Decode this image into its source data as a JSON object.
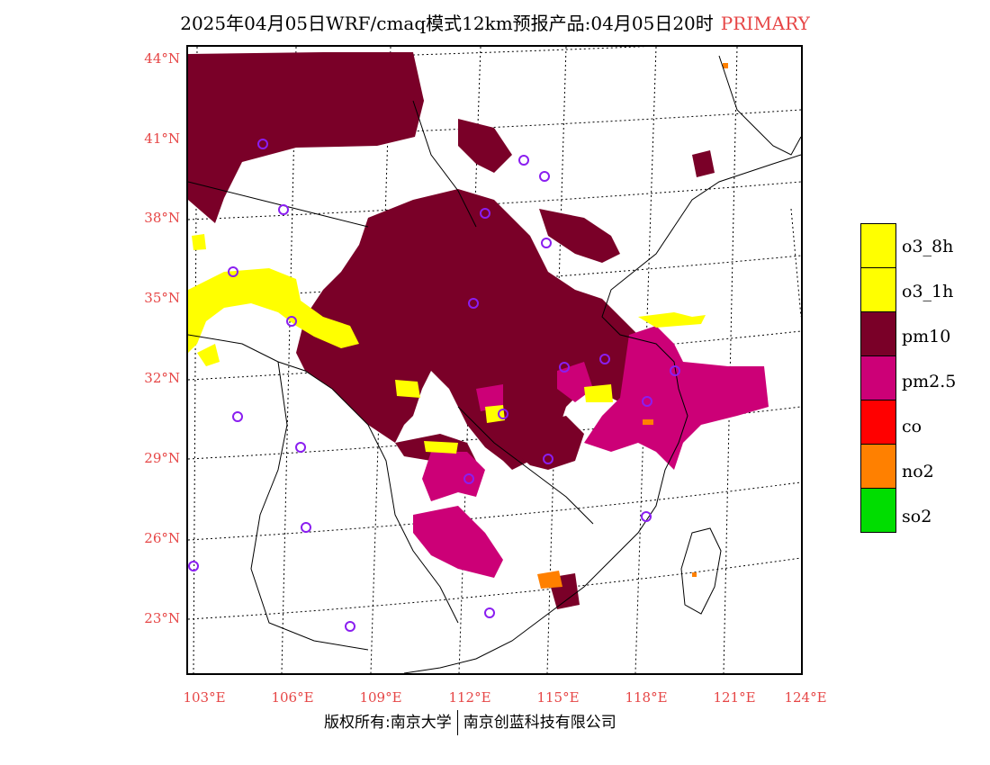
{
  "title": "2025年04月05日WRF/cmaq模式12km预报产品:04月05日20时",
  "title_tag": "PRIMARY",
  "lat_labels": [
    "44°N",
    "41°N",
    "38°N",
    "35°N",
    "32°N",
    "29°N",
    "26°N",
    "23°N"
  ],
  "lon_labels": [
    "103°E",
    "106°E",
    "109°E",
    "112°E",
    "115°E",
    "118°E",
    "121°E",
    "124°E"
  ],
  "legend": [
    {
      "label": "o3_8h",
      "color": "#ffff00"
    },
    {
      "label": "o3_1h",
      "color": "#ffff00"
    },
    {
      "label": "pm10",
      "color": "#7a0028"
    },
    {
      "label": "pm2.5",
      "color": "#cc0077"
    },
    {
      "label": "co",
      "color": "#ff0000"
    },
    {
      "label": "no2",
      "color": "#ff8000"
    },
    {
      "label": "so2",
      "color": "#00dd00"
    }
  ],
  "footer": {
    "left": "版权所有:南京大学",
    "right": "南京创蓝科技有限公司"
  }
}
